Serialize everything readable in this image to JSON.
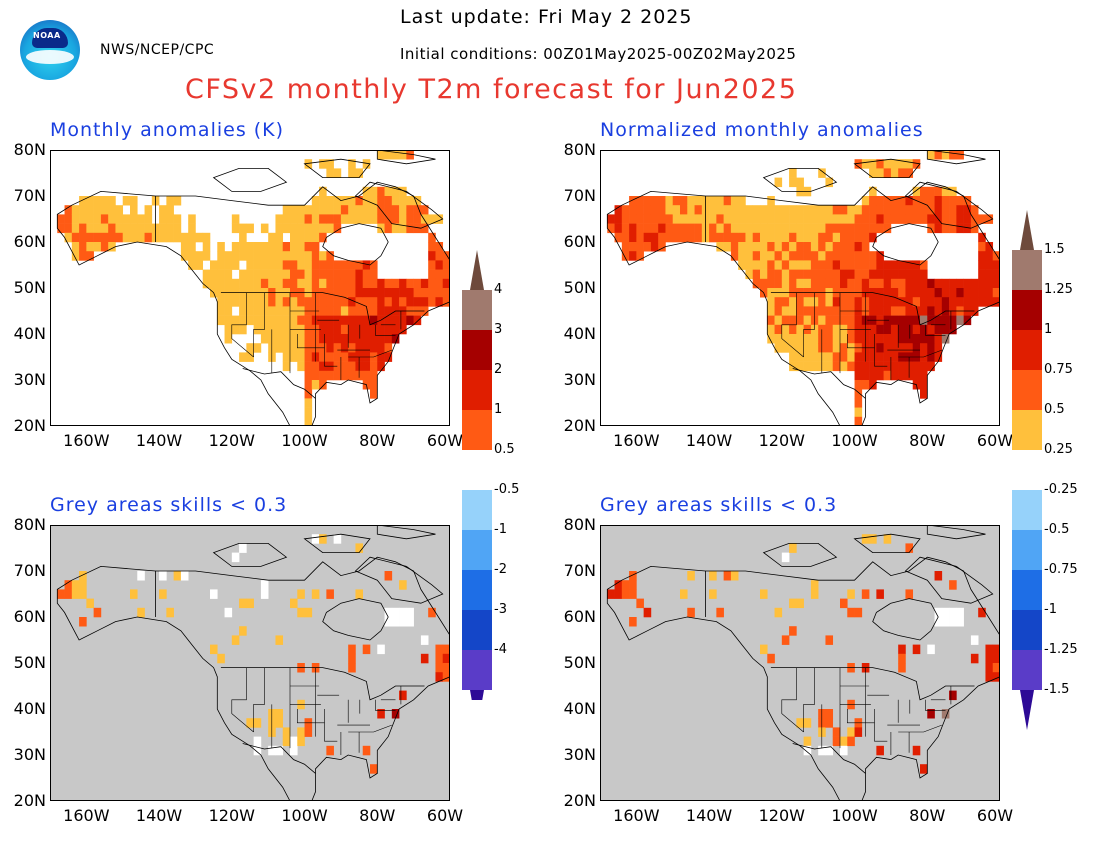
{
  "header": {
    "last_update": "Last update: Fri May 2 2025",
    "initial_conditions": "Initial conditions: 00Z01May2025-00Z02May2025",
    "org": "NWS/NCEP/CPC",
    "title": "CFSv2 monthly T2m forecast for Jun2025",
    "logo_text": "NOAA"
  },
  "panels": [
    {
      "title": "Monthly anomalies (K)",
      "fill": "anomaly"
    },
    {
      "title": "Normalized monthly anomalies",
      "fill": "anomaly"
    },
    {
      "title": "Grey areas skills < 0.3",
      "fill": "skill"
    },
    {
      "title": "Grey areas skills < 0.3",
      "fill": "skill"
    }
  ],
  "axes": {
    "lat_labels": [
      "80N",
      "70N",
      "60N",
      "50N",
      "40N",
      "30N",
      "20N"
    ],
    "lon_labels": [
      "160W",
      "140W",
      "120W",
      "100W",
      "80W",
      "60W"
    ]
  },
  "colorbar_left": {
    "warm_labels": [
      "4",
      "3",
      "2",
      "1",
      "0.5"
    ],
    "cool_labels": [
      "-0.5",
      "-1",
      "-2",
      "-3",
      "-4"
    ]
  },
  "colorbar_right": {
    "warm_labels": [
      "1.5",
      "1.25",
      "1",
      "0.75",
      "0.5",
      "0.25"
    ],
    "cool_labels": [
      "-0.25",
      "-0.5",
      "-0.75",
      "-1",
      "-1.25",
      "-1.5"
    ]
  },
  "colors": {
    "warm": [
      "#ffc03c",
      "#ff5a14",
      "#e01e00",
      "#a50000",
      "#a07a6e",
      "#6e4a3c"
    ],
    "cool": [
      "#96d2fa",
      "#50a5f5",
      "#1e6ee6",
      "#1446c8",
      "#5a3cc8",
      "#2d0a96"
    ],
    "grey": "#c8c8c8",
    "title": "#e8382f",
    "panel_title": "#1a3fe0"
  }
}
